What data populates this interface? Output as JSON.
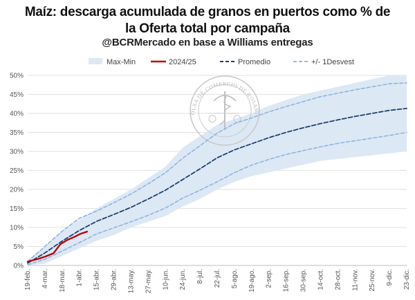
{
  "chart_data": {
    "type": "line",
    "title_line1": "Maíz: descarga acumulada de granos en puertos  como % de",
    "title_line2": "la Oferta total por campaña",
    "subtitle": "@BCRMercado en base a Williams entregas",
    "xlabel": "",
    "ylabel": "",
    "ylim": [
      0,
      50
    ],
    "y_ticks": [
      "0%",
      "5%",
      "10%",
      "15%",
      "20%",
      "25%",
      "30%",
      "35%",
      "40%",
      "45%",
      "50%"
    ],
    "x_tick_labels": [
      "19-feb.",
      "4-mar.",
      "18-mar.",
      "1-abr.",
      "15-abr.",
      "29-abr.",
      "13-may.",
      "27-may.",
      "10-jun.",
      "24-jun.",
      "8-jul.",
      "22-jul.",
      "5-ago.",
      "19-ago.",
      "2-sep.",
      "16-sep.",
      "30-sep.",
      "14-oct.",
      "28-oct.",
      "11-nov.",
      "25-nov.",
      "9-dic.",
      "23-dic."
    ],
    "legend": [
      "Max-Min",
      "2024/25",
      "Promedio",
      "+/- 1Desvest"
    ],
    "grid": true,
    "legend_position": "top",
    "colors": {
      "band": "#dde8f5",
      "current": "#c00000",
      "mean": "#1f3f6e",
      "stdev": "#8fb4dd"
    },
    "band": {
      "max": [
        1.5,
        5,
        9,
        12,
        15,
        17.5,
        20,
        23,
        26,
        31,
        34,
        37,
        38.5,
        40,
        42,
        43.5,
        45,
        46,
        47,
        48,
        49,
        50,
        50
      ],
      "min": [
        0,
        0.5,
        2.5,
        4.5,
        6.5,
        8,
        10,
        11.5,
        13,
        15.5,
        17.5,
        20,
        22,
        23.5,
        24.5,
        25.5,
        26.5,
        27.5,
        28,
        28.5,
        29,
        29.5,
        30
      ]
    },
    "series": [
      {
        "name": "2024/25",
        "x": [
          0,
          0.6,
          1.0,
          1.5,
          1.9,
          2.3,
          2.7,
          3.05,
          3.45
        ],
        "values": [
          1,
          1.7,
          2.3,
          3.2,
          5.6,
          6.7,
          7.5,
          8.3,
          8.9
        ]
      },
      {
        "name": "Promedio",
        "values": [
          0.6,
          3.3,
          6.4,
          9.2,
          11.6,
          13.4,
          15.3,
          17.5,
          19.8,
          22.6,
          25.4,
          28.3,
          30.4,
          32.0,
          33.6,
          35.0,
          36.2,
          37.3,
          38.3,
          39.2,
          40.0,
          40.8,
          41.3
        ]
      },
      {
        "name": "+1 Desvest",
        "values": [
          1.0,
          5.0,
          9.0,
          12.4,
          14.3,
          16.5,
          18.8,
          21.5,
          24.4,
          28.2,
          31.5,
          34.8,
          37.3,
          38.8,
          40.4,
          41.8,
          43.1,
          44.4,
          45.3,
          46.2,
          47.0,
          47.8,
          48.0
        ]
      },
      {
        "name": "-1 Desvest",
        "values": [
          0.2,
          1.6,
          3.8,
          6.0,
          8.3,
          9.9,
          11.5,
          13.2,
          15.1,
          17.7,
          19.8,
          22.0,
          24.4,
          26.4,
          27.9,
          29.2,
          30.2,
          31.2,
          32.1,
          32.8,
          33.5,
          34.2,
          35.0
        ]
      }
    ]
  },
  "watermark": {
    "text": "BOLSA DE COMERCIO DE ROSARIO"
  }
}
